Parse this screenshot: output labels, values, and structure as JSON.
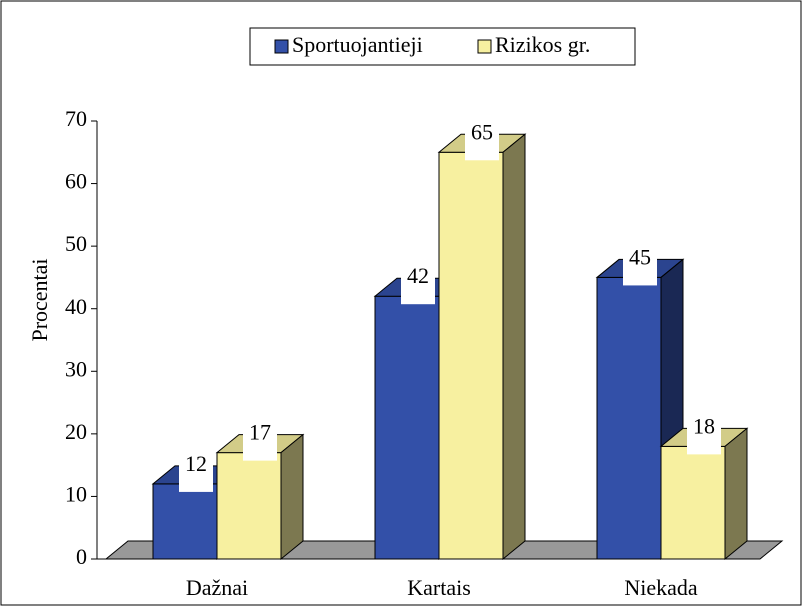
{
  "chart_data": {
    "type": "bar3d",
    "categories": [
      "Dažnai",
      "Kartais",
      "Niekada"
    ],
    "series": [
      {
        "name": "Sportuojantieji",
        "color": "#3350a8",
        "values": [
          12,
          42,
          45
        ]
      },
      {
        "name": "Rizikos gr.",
        "color": "#f7f0a0",
        "values": [
          17,
          65,
          18
        ]
      }
    ],
    "ylabel": "Procentai",
    "ylim": [
      0,
      70
    ],
    "yticks": [
      0,
      10,
      20,
      30,
      40,
      50,
      60,
      70
    ],
    "legend": "top",
    "grid": false
  }
}
